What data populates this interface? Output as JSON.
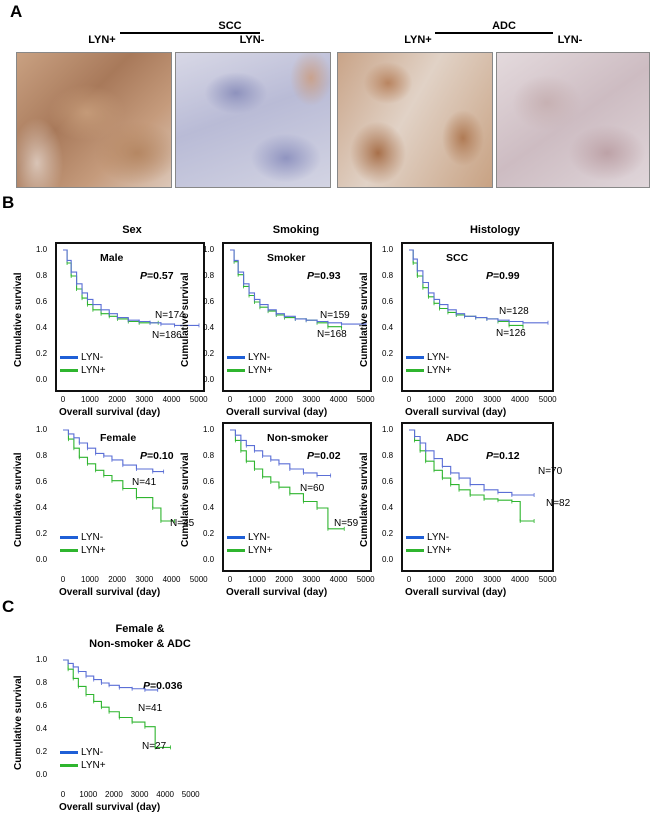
{
  "panel_letters": {
    "a": "A",
    "b": "B",
    "c": "C"
  },
  "panel_a": {
    "groups": [
      {
        "name": "SCC",
        "left_label": "LYN+",
        "right_label": "LYN-"
      },
      {
        "name": "ADC",
        "left_label": "LYN+",
        "right_label": "LYN-"
      }
    ]
  },
  "column_titles": [
    "Sex",
    "Smoking",
    "Histology"
  ],
  "axes": {
    "ylabel": "Cumulative survival",
    "xlabel": "Overall survival (day)",
    "yticks": [
      "1.0",
      "0.8",
      "0.6",
      "0.4",
      "0.2",
      "0.0"
    ],
    "xticks": [
      "0",
      "1000",
      "2000",
      "3000",
      "4000",
      "5000"
    ]
  },
  "legend": {
    "neg": "LYN-",
    "pos": "LYN+"
  },
  "colors": {
    "neg": "#5b6fd6",
    "pos": "#2fb52f",
    "legend_neg": "#1f5fd6",
    "legend_pos": "#2fb52f"
  },
  "chart_data": [
    {
      "type": "line",
      "title": "Male",
      "p_prefix": "P",
      "p_value": "=0.57",
      "xlim": [
        0,
        5000
      ],
      "ylim": [
        0,
        1
      ],
      "n_neg": "N=174",
      "n_pos": "N=186",
      "series": [
        {
          "name": "LYN-",
          "x": [
            0,
            150,
            300,
            500,
            700,
            900,
            1100,
            1400,
            1700,
            2000,
            2400,
            2800,
            3200,
            3600,
            4100,
            5000
          ],
          "y": [
            1.0,
            0.92,
            0.83,
            0.74,
            0.67,
            0.62,
            0.58,
            0.54,
            0.51,
            0.48,
            0.46,
            0.45,
            0.44,
            0.43,
            0.42,
            0.42
          ]
        },
        {
          "name": "LYN+",
          "x": [
            0,
            150,
            300,
            500,
            700,
            900,
            1100,
            1400,
            1700,
            2000,
            2400,
            2800,
            3200,
            3500
          ],
          "y": [
            1.0,
            0.9,
            0.8,
            0.7,
            0.63,
            0.58,
            0.54,
            0.51,
            0.49,
            0.47,
            0.45,
            0.44,
            0.44,
            0.44
          ]
        }
      ]
    },
    {
      "type": "line",
      "title": "Smoker",
      "p_prefix": "P",
      "p_value": "=0.93",
      "xlim": [
        0,
        5000
      ],
      "ylim": [
        0,
        1
      ],
      "n_neg": "N=159",
      "n_pos": "N=168",
      "series": [
        {
          "name": "LYN-",
          "x": [
            0,
            150,
            300,
            500,
            700,
            900,
            1100,
            1400,
            1700,
            2000,
            2400,
            2800,
            3200,
            3600,
            4100,
            5000
          ],
          "y": [
            1.0,
            0.92,
            0.83,
            0.74,
            0.67,
            0.62,
            0.58,
            0.54,
            0.51,
            0.49,
            0.47,
            0.46,
            0.45,
            0.44,
            0.43,
            0.43
          ]
        },
        {
          "name": "LYN+",
          "x": [
            0,
            150,
            300,
            500,
            700,
            900,
            1100,
            1400,
            1700,
            2000,
            2400,
            2800,
            3200,
            3600,
            4100
          ],
          "y": [
            1.0,
            0.91,
            0.81,
            0.72,
            0.65,
            0.6,
            0.56,
            0.53,
            0.5,
            0.48,
            0.47,
            0.46,
            0.44,
            0.41,
            0.4
          ]
        }
      ]
    },
    {
      "type": "line",
      "title": "SCC",
      "p_prefix": "P",
      "p_value": "=0.99",
      "xlim": [
        0,
        5000
      ],
      "ylim": [
        0,
        1
      ],
      "n_neg": "N=128",
      "n_pos": "N=126",
      "series": [
        {
          "name": "LYN-",
          "x": [
            0,
            150,
            300,
            500,
            700,
            900,
            1100,
            1400,
            1700,
            2000,
            2400,
            2800,
            3200,
            3600,
            4100,
            5000
          ],
          "y": [
            1.0,
            0.93,
            0.84,
            0.75,
            0.67,
            0.62,
            0.58,
            0.54,
            0.51,
            0.49,
            0.48,
            0.47,
            0.46,
            0.45,
            0.44,
            0.44
          ]
        },
        {
          "name": "LYN+",
          "x": [
            0,
            150,
            300,
            500,
            700,
            900,
            1100,
            1400,
            1700,
            2000,
            2400,
            2800,
            3200,
            3600,
            4100
          ],
          "y": [
            1.0,
            0.9,
            0.8,
            0.71,
            0.64,
            0.59,
            0.55,
            0.52,
            0.5,
            0.49,
            0.48,
            0.47,
            0.45,
            0.42,
            0.41
          ]
        }
      ]
    },
    {
      "type": "line",
      "title": "Female",
      "p_prefix": "P",
      "p_value": "=0.10",
      "xlim": [
        0,
        5000
      ],
      "ylim": [
        0,
        1
      ],
      "n_neg": "N=41",
      "n_pos": "N=45",
      "series": [
        {
          "name": "LYN-",
          "x": [
            0,
            200,
            400,
            600,
            900,
            1200,
            1500,
            1800,
            2200,
            2700,
            3300,
            3700
          ],
          "y": [
            1.0,
            0.97,
            0.94,
            0.9,
            0.86,
            0.82,
            0.8,
            0.77,
            0.73,
            0.7,
            0.68,
            0.68
          ]
        },
        {
          "name": "LYN+",
          "x": [
            0,
            200,
            400,
            600,
            900,
            1200,
            1500,
            1800,
            2200,
            2700,
            3300,
            3600,
            4100
          ],
          "y": [
            1.0,
            0.93,
            0.86,
            0.79,
            0.74,
            0.69,
            0.65,
            0.61,
            0.55,
            0.48,
            0.4,
            0.3,
            0.3
          ]
        }
      ]
    },
    {
      "type": "line",
      "title": "Non-smoker",
      "p_prefix": "P",
      "p_value": "=0.02",
      "xlim": [
        0,
        5000
      ],
      "ylim": [
        0,
        1
      ],
      "n_neg": "N=60",
      "n_pos": "N=59",
      "series": [
        {
          "name": "LYN-",
          "x": [
            0,
            200,
            400,
            600,
            900,
            1200,
            1500,
            1800,
            2200,
            2700,
            3200,
            3700
          ],
          "y": [
            1.0,
            0.96,
            0.92,
            0.88,
            0.84,
            0.8,
            0.77,
            0.74,
            0.7,
            0.67,
            0.65,
            0.65
          ]
        },
        {
          "name": "LYN+",
          "x": [
            0,
            200,
            400,
            600,
            900,
            1200,
            1500,
            1800,
            2200,
            2700,
            3200,
            3600,
            4200
          ],
          "y": [
            1.0,
            0.92,
            0.84,
            0.76,
            0.7,
            0.64,
            0.6,
            0.56,
            0.51,
            0.45,
            0.4,
            0.24,
            0.24
          ]
        }
      ]
    },
    {
      "type": "line",
      "title": "ADC",
      "p_prefix": "P",
      "p_value": "=0.12",
      "xlim": [
        0,
        5000
      ],
      "ylim": [
        0,
        1
      ],
      "n_neg": "N=70",
      "n_pos": "N=82",
      "series": [
        {
          "name": "LYN-",
          "x": [
            0,
            200,
            400,
            600,
            900,
            1200,
            1500,
            1800,
            2200,
            2700,
            3200,
            3700,
            4500
          ],
          "y": [
            1.0,
            0.95,
            0.9,
            0.84,
            0.78,
            0.72,
            0.67,
            0.63,
            0.58,
            0.54,
            0.52,
            0.5,
            0.5
          ]
        },
        {
          "name": "LYN+",
          "x": [
            0,
            200,
            400,
            600,
            900,
            1200,
            1500,
            1800,
            2200,
            2700,
            3200,
            3700,
            4000,
            4500
          ],
          "y": [
            1.0,
            0.92,
            0.84,
            0.76,
            0.69,
            0.63,
            0.58,
            0.54,
            0.5,
            0.47,
            0.46,
            0.45,
            0.3,
            0.3
          ]
        }
      ]
    },
    {
      "type": "line",
      "title_line1": "Female &",
      "title_line2": "Non-smoker & ADC",
      "p_prefix": "P",
      "p_value": "=0.036",
      "xlim": [
        0,
        5000
      ],
      "ylim": [
        0,
        1
      ],
      "n_neg": "N=41",
      "n_pos": "N=27",
      "series": [
        {
          "name": "LYN-",
          "x": [
            0,
            200,
            400,
            600,
            900,
            1200,
            1500,
            1800,
            2200,
            2700,
            3200,
            3700
          ],
          "y": [
            1.0,
            0.97,
            0.94,
            0.9,
            0.86,
            0.83,
            0.8,
            0.78,
            0.76,
            0.75,
            0.74,
            0.74
          ]
        },
        {
          "name": "LYN+",
          "x": [
            0,
            200,
            400,
            600,
            900,
            1200,
            1500,
            1800,
            2200,
            2700,
            3200,
            3600,
            4200
          ],
          "y": [
            1.0,
            0.92,
            0.84,
            0.77,
            0.7,
            0.64,
            0.59,
            0.55,
            0.5,
            0.46,
            0.42,
            0.24,
            0.24
          ]
        }
      ]
    }
  ]
}
